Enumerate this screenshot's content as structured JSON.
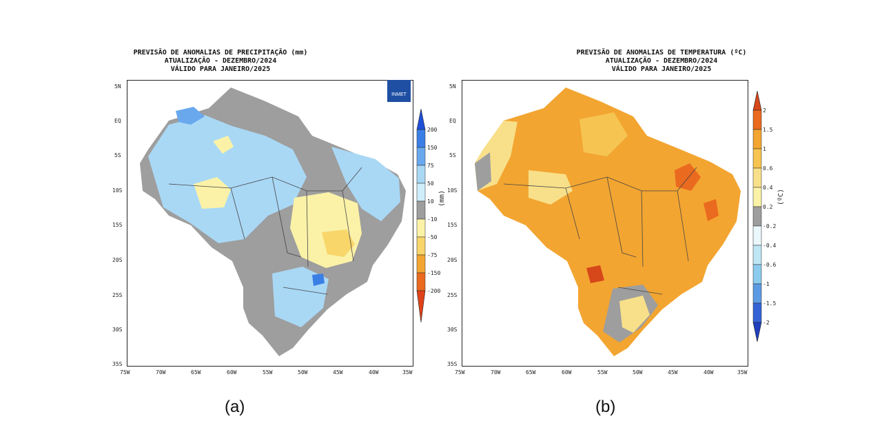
{
  "panels": [
    {
      "id": "a",
      "title_lines": [
        "PREVISÃO DE ANOMALIAS DE PRECIPITAÇÃO (mm)",
        "ATUALIZAÇÃO - DEZEMBRO/2024",
        "VÁLIDO PARA JANEIRO/2025"
      ],
      "caption": "(a)",
      "unit": "(mm)",
      "logo": "INMET",
      "colorbar": {
        "labels": [
          "200",
          "150",
          "75",
          "50",
          "10",
          "-10",
          "-50",
          "-75",
          "-150",
          "-200"
        ],
        "colors": [
          "#1f4fd8",
          "#3b7fe6",
          "#6aa8ee",
          "#a9d8f5",
          "#cfeefb",
          "#9e9e9e",
          "#fbf2a8",
          "#f8d66a",
          "#f3a531",
          "#ea6a1f",
          "#e0421a"
        ]
      }
    },
    {
      "id": "b",
      "title_lines": [
        "PREVISÃO DE ANOMALIAS DE TEMPERATURA (ºC)",
        "ATUALIZAÇÃO - DEZEMBRO/2024",
        "VÁLIDO PARA JANEIRO/2025"
      ],
      "caption": "(b)",
      "unit": "(ºC)",
      "colorbar": {
        "labels": [
          "2",
          "1.5",
          "1",
          "0.6",
          "0.4",
          "0.2",
          "-0.2",
          "-0.4",
          "-0.6",
          "-1",
          "-1.5",
          "-2"
        ],
        "colors": [
          "#d6471a",
          "#ea6a1f",
          "#f3a531",
          "#f6c451",
          "#f8e08a",
          "#fbf2a8",
          "#9e9e9e",
          "#eaf7fb",
          "#bfe6f4",
          "#8ccbed",
          "#5c9be4",
          "#3563d6",
          "#1f3fbf"
        ]
      }
    }
  ],
  "lat_labels": [
    "5N",
    "EQ",
    "5S",
    "10S",
    "15S",
    "20S",
    "25S",
    "30S",
    "35S"
  ],
  "lon_labels": [
    "75W",
    "70W",
    "65W",
    "60W",
    "55W",
    "50W",
    "45W",
    "40W",
    "35W"
  ]
}
